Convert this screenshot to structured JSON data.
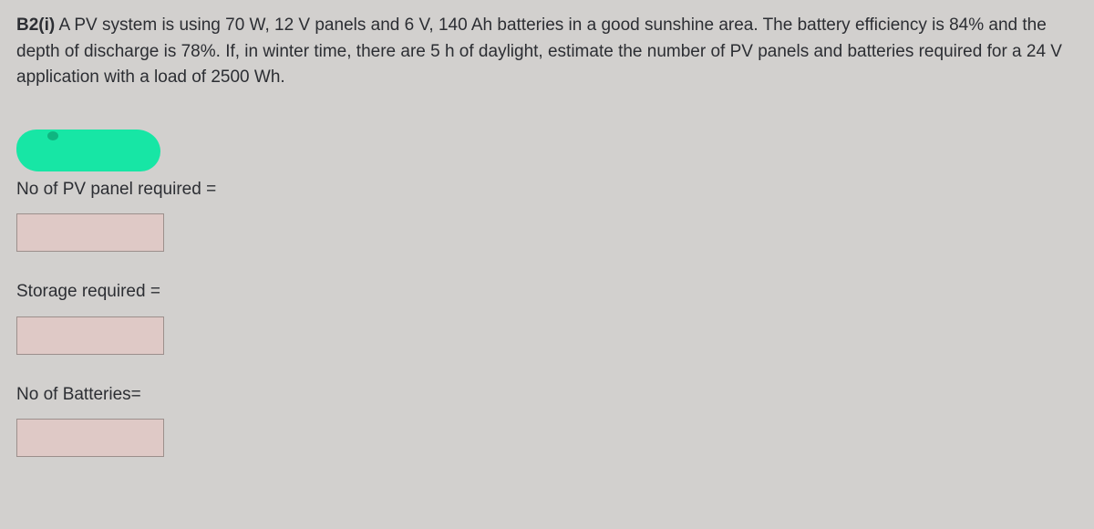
{
  "colors": {
    "body_bg": "#d2d0ce",
    "text_color": "#2c2e33",
    "redaction_fill": "#17e6a5",
    "redaction_tip": "#0fb580",
    "input_bg": "#dfc9c6",
    "input_border": "#9c8f8c"
  },
  "question": {
    "label": "B2(i)",
    "text": " A PV system is using 70 W, 12 V panels and 6 V, 140 Ah batteries in a good sunshine area. The battery efficiency is 84% and the depth of discharge is 78%. If, in winter time, there are 5 h of daylight, estimate the number of PV panels and batteries required for a 24 V application with a load of 2500 Wh."
  },
  "fields": {
    "pv_panels": {
      "label": "No of PV panel required =",
      "value": ""
    },
    "storage": {
      "label": "Storage required =",
      "value": ""
    },
    "batteries": {
      "label": "No of Batteries=",
      "value": ""
    }
  }
}
